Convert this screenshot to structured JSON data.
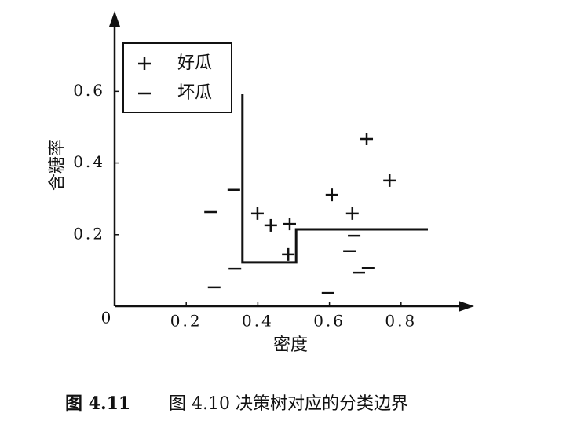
{
  "chart_data": {
    "type": "scatter",
    "xlabel": "密度",
    "ylabel": "含糖率",
    "caption_label": "图 4.11",
    "caption": "图 4.10 决策树对应的分类边界",
    "xlim": [
      0,
      1.0
    ],
    "ylim": [
      0,
      0.82
    ],
    "xticks": [
      0,
      0.2,
      0.4,
      0.6,
      0.8
    ],
    "yticks": [
      0.2,
      0.4,
      0.6
    ],
    "legend": "upper left",
    "series": [
      {
        "name": "好瓜",
        "marker": "plus",
        "color": "#111111",
        "x": [
          0.704,
          0.768,
          0.607,
          0.664,
          0.399,
          0.436,
          0.489,
          0.485
        ],
        "values": [
          0.467,
          0.351,
          0.311,
          0.259,
          0.259,
          0.226,
          0.23,
          0.145
        ]
      },
      {
        "name": "坏瓜",
        "marker": "minus",
        "color": "#111111",
        "x": [
          0.333,
          0.268,
          0.336,
          0.278,
          0.669,
          0.656,
          0.682,
          0.708,
          0.596
        ],
        "values": [
          0.325,
          0.263,
          0.105,
          0.053,
          0.197,
          0.154,
          0.094,
          0.107,
          0.037
        ]
      }
    ],
    "boundary": {
      "color": "#111111",
      "x": [
        0.357,
        0.357,
        0.507,
        0.507,
        0.875
      ],
      "values": [
        0.592,
        0.123,
        0.123,
        0.215,
        0.215
      ]
    }
  }
}
